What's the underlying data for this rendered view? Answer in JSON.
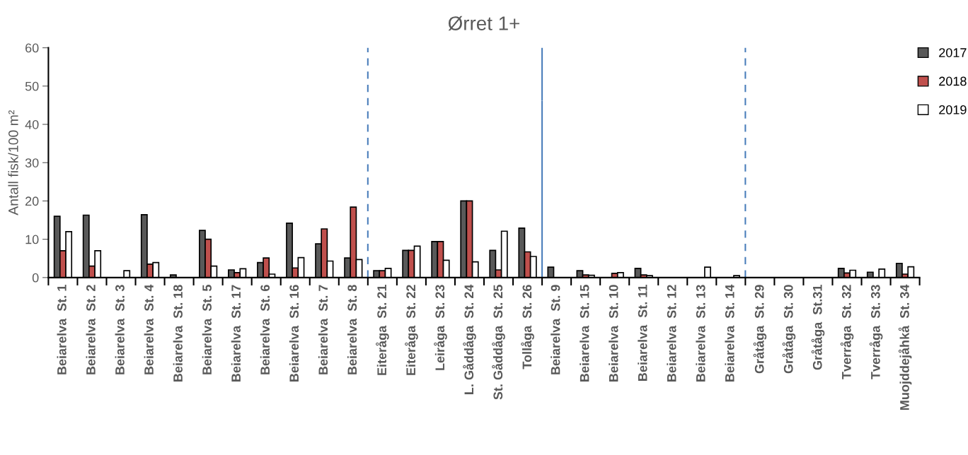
{
  "chart_data": {
    "type": "bar",
    "title": "Ørret 1+",
    "ylabel": "Antall fisk/100 m²",
    "categories": [
      "Beiarelva  St. 1",
      "Beiarelva  St. 2",
      "Beiarelva  St. 3",
      "Beiarelva  St. 4",
      "Beiarelva  St. 18",
      "Beiarelva  St. 5",
      "Beiarelva  St. 17",
      "Beiarelva  St. 6",
      "Beiarelva  St. 16",
      "Beiarelva  St. 7",
      "Beiarelva  St. 8",
      "Eiteråga  St. 21",
      "Eiteråga  St. 22",
      "Leiråga  St. 23",
      "L. Gåddåga  St. 24",
      "St. Gåddåga  St. 25",
      "Tollåga  St. 26",
      "Beiarelva  St. 9",
      "Beiarelva  St. 15",
      "Beiarelva  St. 10",
      "Beiarelva  St. 11",
      "Beiarelva  St. 12",
      "Beiarelva  St. 13",
      "Beiarelva  St. 14",
      "Gråtåga  St. 29",
      "Gråtåga  St. 30",
      "Gråtåga  St.31",
      "Tverråga  St. 32",
      "Tverråga  St. 33",
      "Muojddejåhkå  St. 34"
    ],
    "series": [
      {
        "name": "2017",
        "color": "#595959",
        "values": [
          16,
          16.3,
          0,
          16.4,
          0.7,
          12.3,
          2,
          3.9,
          14.2,
          8.8,
          5.1,
          1.8,
          7.1,
          9.4,
          20,
          7.1,
          12.9,
          2.7,
          1.8,
          0,
          2.4,
          0,
          0,
          0,
          0,
          0,
          0,
          2.4,
          1.4,
          3.7
        ]
      },
      {
        "name": "2018",
        "color": "#c0504d",
        "values": [
          7,
          3,
          0,
          3.5,
          0,
          10,
          1.3,
          5.1,
          2.5,
          12.7,
          18.4,
          1.8,
          7.1,
          9.4,
          20,
          2,
          6.7,
          0,
          0.7,
          1.1,
          0.7,
          0,
          0,
          0,
          0,
          0,
          0,
          1.2,
          0,
          0.9
        ]
      },
      {
        "name": "2019",
        "color": "#ffffff",
        "values": [
          12,
          7,
          1.8,
          3.9,
          0,
          3,
          2.3,
          0.9,
          5.2,
          4.3,
          4.7,
          2.4,
          8.2,
          4.5,
          4.1,
          12.1,
          5.5,
          0,
          0.6,
          1.3,
          0.5,
          0,
          2.7,
          0.5,
          0,
          0,
          0,
          1.9,
          2.2,
          2.8
        ]
      }
    ],
    "ylim": [
      0,
      60
    ],
    "yticks": [
      0,
      10,
      20,
      30,
      40,
      50,
      60
    ],
    "grid": false,
    "legend": "top right"
  }
}
